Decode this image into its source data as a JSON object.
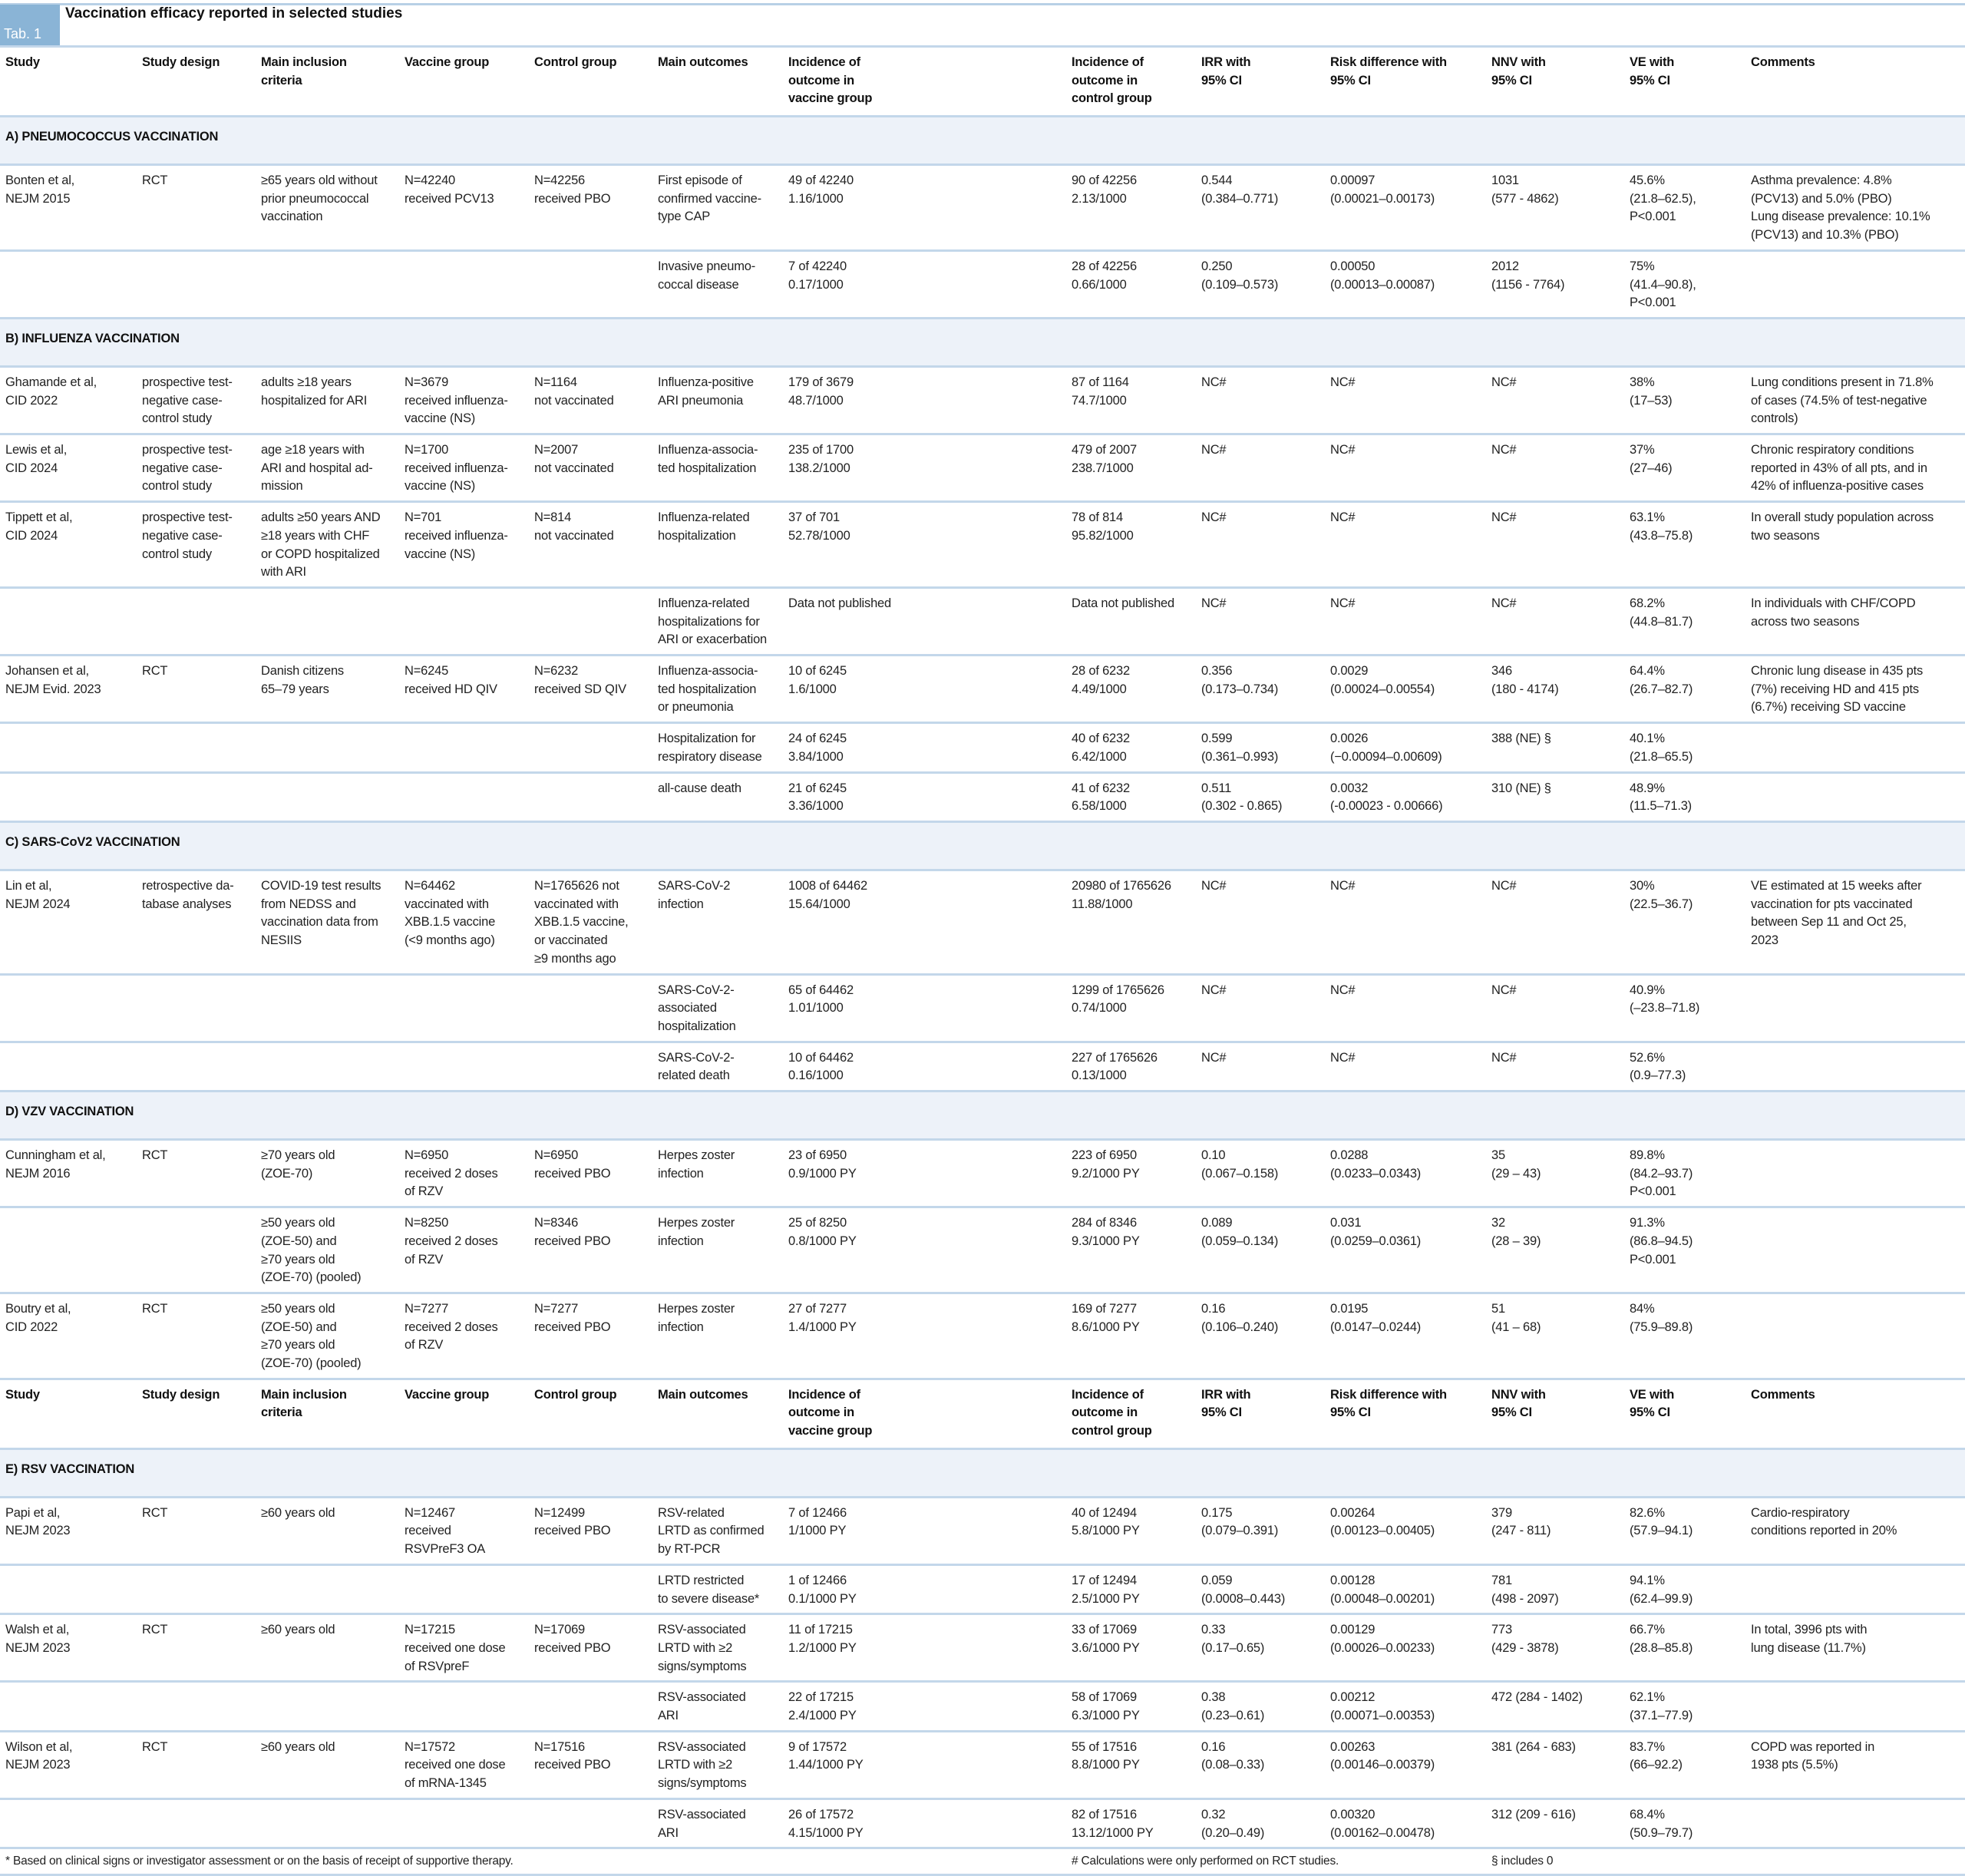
{
  "tab_label": "Tab. 1",
  "title": "Vaccination efficacy reported in selected studies",
  "colors": {
    "accent": "#8ab4d6",
    "rule": "#c3d7ea",
    "section_bg": "#edf2f9"
  },
  "headers": [
    "Study",
    "Study design",
    "Main inclusion\ncriteria",
    "Vaccine group",
    "Control group",
    "Main outcomes",
    "Incidence of\noutcome in\nvaccine group",
    "Incidence of\noutcome in\ncontrol group",
    "IRR with\n95% CI",
    "Risk difference with\n95% CI",
    "NNV with\n95% CI",
    "VE with\n95% CI",
    "Comments"
  ],
  "rows": [
    {
      "type": "header"
    },
    {
      "type": "section",
      "label": "A) PNEUMOCOCCUS VACCINATION"
    },
    {
      "type": "data",
      "cells": [
        "Bonten et al,\nNEJM 2015",
        "RCT",
        "≥65 years old without\nprior pneumococcal\nvaccination",
        "N=42240\nreceived PCV13",
        "N=42256\nreceived PBO",
        "First episode of\nconfirmed vaccine-\ntype CAP",
        "49 of 42240\n1.16/1000",
        "90 of 42256\n2.13/1000",
        "0.544\n(0.384–0.771)",
        "0.00097\n(0.00021–0.00173)",
        "1031\n(577 - 4862)",
        "45.6%\n(21.8–62.5),\nP<0.001",
        "Asthma prevalence: 4.8%\n(PCV13) and 5.0% (PBO)\nLung disease prevalence: 10.1%\n(PCV13) and 10.3% (PBO)"
      ]
    },
    {
      "type": "data",
      "cells": [
        "",
        "",
        "",
        "",
        "",
        "Invasive pneumo-\ncoccal disease",
        "7 of 42240\n0.17/1000",
        "28 of 42256\n0.66/1000",
        "0.250\n(0.109–0.573)",
        "0.00050\n(0.00013–0.00087)",
        "2012\n(1156 - 7764)",
        "75%\n(41.4–90.8),\nP<0.001",
        ""
      ]
    },
    {
      "type": "section",
      "label": "B) INFLUENZA VACCINATION"
    },
    {
      "type": "data",
      "cells": [
        "Ghamande et al,\nCID 2022",
        "prospective test-\nnegative case-\ncontrol study",
        "adults ≥18 years\nhospitalized for ARI",
        "N=3679\nreceived influenza-\nvaccine (NS)",
        "N=1164\nnot vaccinated",
        "Influenza-positive\nARI pneumonia",
        "179 of 3679\n48.7/1000",
        "87 of 1164\n74.7/1000",
        "NC#",
        "NC#",
        "NC#",
        "38%\n(17–53)",
        "Lung conditions present in 71.8%\nof cases (74.5% of test-negative\ncontrols)"
      ]
    },
    {
      "type": "data",
      "cells": [
        "Lewis et al,\nCID 2024",
        "prospective test-\nnegative case-\ncontrol study",
        "age ≥18 years with\nARI and hospital ad-\nmission",
        "N=1700\nreceived influenza-\nvaccine (NS)",
        "N=2007\nnot vaccinated",
        "Influenza-associa-\nted hospitalization",
        "235 of 1700\n138.2/1000",
        "479 of 2007\n238.7/1000",
        "NC#",
        "NC#",
        "NC#",
        "37%\n(27–46)",
        "Chronic respiratory conditions\nreported in 43% of all pts, and in\n42% of influenza-positive cases"
      ]
    },
    {
      "type": "data",
      "cells": [
        "Tippett et al,\nCID 2024",
        "prospective test-\nnegative case-\ncontrol study",
        "adults ≥50 years AND\n≥18 years with CHF\nor COPD hospitalized\nwith ARI",
        "N=701\nreceived influenza-\nvaccine (NS)",
        "N=814\nnot vaccinated",
        "Influenza-related\nhospitalization",
        "37 of 701\n52.78/1000",
        "78 of 814\n95.82/1000",
        "NC#",
        "NC#",
        "NC#",
        "63.1%\n(43.8–75.8)",
        "In overall study population across\ntwo seasons"
      ]
    },
    {
      "type": "data",
      "cells": [
        "",
        "",
        "",
        "",
        "",
        "Influenza-related\nhospitalizations for\nARI or exacerbation",
        "Data not published",
        "Data not published",
        "NC#",
        "NC#",
        "NC#",
        "68.2%\n(44.8–81.7)",
        "In individuals with CHF/COPD\nacross two seasons"
      ]
    },
    {
      "type": "data",
      "cells": [
        "Johansen et al,\nNEJM Evid. 2023",
        "RCT",
        "Danish citizens\n65–79 years",
        "N=6245\nreceived HD QIV",
        "N=6232\nreceived SD QIV",
        "Influenza-associa-\nted hospitalization\nor pneumonia",
        "10 of 6245\n1.6/1000",
        "28 of 6232\n4.49/1000",
        "0.356\n(0.173–0.734)",
        "0.0029\n(0.00024–0.00554)",
        "346\n(180 - 4174)",
        "64.4%\n(26.7–82.7)",
        "Chronic lung disease in 435 pts\n(7%) receiving HD and 415 pts\n(6.7%) receiving SD vaccine"
      ]
    },
    {
      "type": "data",
      "cells": [
        "",
        "",
        "",
        "",
        "",
        "Hospitalization for\nrespiratory disease",
        "24 of 6245\n3.84/1000",
        "40 of 6232\n6.42/1000",
        "0.599\n(0.361–0.993)",
        "0.0026\n(−0.00094–0.00609)",
        "388 (NE) §",
        "40.1%\n(21.8–65.5)",
        ""
      ]
    },
    {
      "type": "data",
      "cells": [
        "",
        "",
        "",
        "",
        "",
        "all-cause death",
        "21 of 6245\n3.36/1000",
        "41 of 6232\n6.58/1000",
        "0.511\n(0.302 - 0.865)",
        "0.0032\n(-0.00023 - 0.00666)",
        "310 (NE) §",
        "48.9%\n(11.5–71.3)",
        ""
      ]
    },
    {
      "type": "section",
      "label": "C) SARS-CoV2 VACCINATION"
    },
    {
      "type": "data",
      "cells": [
        "Lin et al,\nNEJM 2024",
        "retrospective da-\ntabase analyses",
        "COVID-19 test results\nfrom NEDSS and\nvaccination data from\nNESIIS",
        "N=64462\nvaccinated with\nXBB.1.5 vaccine\n(<9 months ago)",
        "N=1765626 not\nvaccinated with\nXBB.1.5 vaccine,\nor vaccinated\n≥9 months ago",
        "SARS-CoV-2\ninfection",
        "1008 of 64462\n15.64/1000",
        "20980 of 1765626\n11.88/1000",
        "NC#",
        "NC#",
        "NC#",
        "30%\n(22.5–36.7)",
        "VE estimated at 15 weeks after\nvaccination for pts vaccinated\nbetween Sep 11 and Oct 25,\n2023"
      ]
    },
    {
      "type": "data",
      "cells": [
        "",
        "",
        "",
        "",
        "",
        "SARS-CoV-2-\nassociated\nhospitalization",
        "65 of 64462\n1.01/1000",
        "1299 of 1765626\n0.74/1000",
        "NC#",
        "NC#",
        "NC#",
        "40.9%\n(–23.8–71.8)",
        ""
      ]
    },
    {
      "type": "data",
      "cells": [
        "",
        "",
        "",
        "",
        "",
        "SARS-CoV-2-\nrelated death",
        "10 of 64462\n0.16/1000",
        "227 of 1765626\n0.13/1000",
        "NC#",
        "NC#",
        "NC#",
        "52.6%\n(0.9–77.3)",
        ""
      ]
    },
    {
      "type": "section",
      "label": "D) VZV VACCINATION"
    },
    {
      "type": "data",
      "cells": [
        "Cunningham et al,\nNEJM 2016",
        "RCT",
        "≥70 years old\n(ZOE-70)",
        "N=6950\nreceived 2 doses\nof RZV",
        "N=6950\nreceived PBO",
        "Herpes zoster\ninfection",
        "23 of 6950\n0.9/1000 PY",
        "223 of 6950\n9.2/1000 PY",
        "0.10\n(0.067–0.158)",
        "0.0288\n(0.0233–0.0343)",
        "35\n(29 – 43)",
        "89.8%\n(84.2–93.7)\nP<0.001",
        ""
      ]
    },
    {
      "type": "data",
      "cells": [
        "",
        "",
        "≥50 years old\n(ZOE-50) and\n≥70 years old\n(ZOE-70) (pooled)",
        "N=8250\nreceived 2 doses\nof RZV",
        "N=8346\nreceived PBO",
        "Herpes zoster\ninfection",
        "25 of 8250\n0.8/1000 PY",
        "284 of 8346\n9.3/1000 PY",
        "0.089\n(0.059–0.134)",
        "0.031\n(0.0259–0.0361)",
        "32\n(28 – 39)",
        "91.3%\n(86.8–94.5)\nP<0.001",
        ""
      ]
    },
    {
      "type": "data",
      "cells": [
        "Boutry et al,\nCID 2022",
        "RCT",
        "≥50 years old\n(ZOE-50) and\n≥70 years old\n(ZOE-70) (pooled)",
        "N=7277\nreceived 2 doses\nof RZV",
        "N=7277\nreceived PBO",
        "Herpes zoster\ninfection",
        "27 of 7277\n1.4/1000 PY",
        "169 of 7277\n8.6/1000 PY",
        "0.16\n(0.106–0.240)",
        "0.0195\n(0.0147–0.0244)",
        "51\n(41 – 68)",
        "84%\n(75.9–89.8)",
        ""
      ]
    },
    {
      "type": "header"
    },
    {
      "type": "section",
      "label": "E) RSV VACCINATION"
    },
    {
      "type": "data",
      "cells": [
        "Papi et al,\nNEJM 2023",
        "RCT",
        "≥60 years old",
        "N=12467\nreceived\nRSVPreF3 OA",
        "N=12499\nreceived PBO",
        "RSV-related\nLRTD as confirmed\nby RT-PCR",
        "7 of 12466\n1/1000 PY",
        "40 of 12494\n5.8/1000 PY",
        "0.175\n(0.079–0.391)",
        "0.00264\n(0.00123–0.00405)",
        "379\n(247 - 811)",
        "82.6%\n(57.9–94.1)",
        "Cardio-respiratory\nconditions reported in 20%"
      ]
    },
    {
      "type": "data",
      "cells": [
        "",
        "",
        "",
        "",
        "",
        "LRTD restricted\nto severe disease*",
        "1 of 12466\n0.1/1000 PY",
        "17 of 12494\n2.5/1000 PY",
        "0.059\n(0.0008–0.443)",
        "0.00128\n(0.00048–0.00201)",
        "781\n(498 - 2097)",
        "94.1%\n(62.4–99.9)",
        ""
      ]
    },
    {
      "type": "data",
      "cells": [
        "Walsh et al,\nNEJM 2023",
        "RCT",
        "≥60 years old",
        "N=17215\nreceived one dose\nof RSVpreF",
        "N=17069\nreceived PBO",
        "RSV-associated\nLRTD with ≥2\nsigns/symptoms",
        "11 of 17215\n1.2/1000 PY",
        "33 of 17069\n3.6/1000 PY",
        "0.33\n(0.17–0.65)",
        "0.00129\n(0.00026–0.00233)",
        "773\n(429 - 3878)",
        "66.7%\n(28.8–85.8)",
        "In total, 3996 pts with\nlung disease (11.7%)"
      ]
    },
    {
      "type": "data",
      "cells": [
        "",
        "",
        "",
        "",
        "",
        "RSV-associated\nARI",
        "22 of 17215\n2.4/1000 PY",
        "58 of 17069\n6.3/1000 PY",
        "0.38\n(0.23–0.61)",
        "0.00212\n(0.00071–0.00353)",
        "472 (284 - 1402)",
        "62.1%\n(37.1–77.9)",
        ""
      ]
    },
    {
      "type": "data",
      "cells": [
        "Wilson et al,\nNEJM 2023",
        "RCT",
        "≥60 years old",
        "N=17572\nreceived one dose\nof mRNA-1345",
        "N=17516\nreceived PBO",
        "RSV-associated\nLRTD with ≥2\nsigns/symptoms",
        "9 of 17572\n1.44/1000 PY",
        "55 of 17516\n8.8/1000 PY",
        "0.16\n(0.08–0.33)",
        "0.00263\n(0.00146–0.00379)",
        "381 (264 - 683)",
        "83.7%\n(66–92.2)",
        "COPD was reported in\n1938 pts (5.5%)"
      ]
    },
    {
      "type": "data",
      "cells": [
        "",
        "",
        "",
        "",
        "",
        "RSV-associated\nARI",
        "26 of 17572\n4.15/1000 PY",
        "82 of 17516\n13.12/1000 PY",
        "0.32\n(0.20–0.49)",
        "0.00320\n(0.00162–0.00478)",
        "312 (209 - 616)",
        "68.4%\n(50.9–79.7)",
        ""
      ]
    }
  ],
  "footnotes": {
    "asterisk": "* Based on clinical signs or investigator assessment or on the basis of receipt of supportive therapy.",
    "hash": "# Calculations were only performed on RCT studies.",
    "section": "§ includes 0"
  }
}
